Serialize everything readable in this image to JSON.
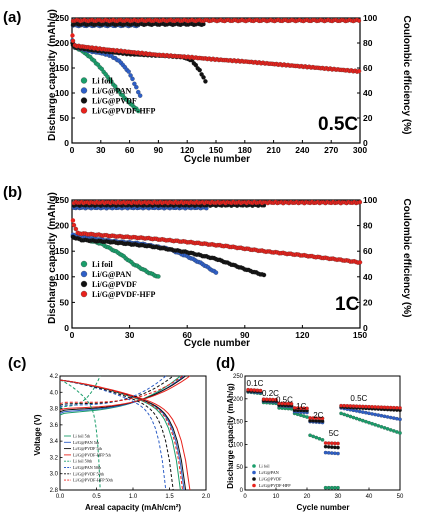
{
  "chart_data": [
    {
      "id": "a",
      "panel_label": "(a)",
      "type": "scatter",
      "xlabel": "Cycle number",
      "ylabel": "Discharge capacity (mAh/g)",
      "ylabel_right": "Coulombic efficiency (%)",
      "xlim": [
        0,
        300
      ],
      "ylim": [
        0,
        250
      ],
      "ylim_right": [
        0,
        100
      ],
      "xticks": [
        "0",
        "30",
        "60",
        "90",
        "120",
        "150",
        "180",
        "210",
        "240",
        "270",
        "300"
      ],
      "yticks": [
        "0",
        "50",
        "100",
        "150",
        "200",
        "250"
      ],
      "yticks_right": [
        "0",
        "20",
        "40",
        "60",
        "80",
        "100"
      ],
      "rate_label": "0.5C",
      "legend_position": "bottom-left",
      "series": [
        {
          "name": "Li foil",
          "color": "#1a9e6b",
          "end": 70,
          "cap": [
            [
              0,
              205
            ],
            [
              2,
              192
            ],
            [
              10,
              185
            ],
            [
              20,
              170
            ],
            [
              30,
              150
            ],
            [
              40,
              125
            ],
            [
              50,
              100
            ],
            [
              60,
              80
            ],
            [
              70,
              63
            ]
          ],
          "ce_end": 55,
          "ce": 96
        },
        {
          "name": "Li/G@PAN",
          "color": "#2e5fc7",
          "end": 72,
          "cap": [
            [
              0,
              205
            ],
            [
              2,
              192
            ],
            [
              10,
              188
            ],
            [
              20,
              183
            ],
            [
              30,
              180
            ],
            [
              40,
              175
            ],
            [
              50,
              163
            ],
            [
              60,
              140
            ],
            [
              66,
              115
            ],
            [
              72,
              90
            ]
          ],
          "ce_end": 70,
          "ce": 94
        },
        {
          "name": "Li/G@PVDF",
          "color": "#111111",
          "end": 140,
          "cap": [
            [
              0,
              200
            ],
            [
              2,
              192
            ],
            [
              20,
              186
            ],
            [
              40,
              182
            ],
            [
              60,
              178
            ],
            [
              80,
              176
            ],
            [
              100,
              174
            ],
            [
              115,
              172
            ],
            [
              125,
              165
            ],
            [
              133,
              145
            ],
            [
              140,
              120
            ]
          ],
          "ce_end": 138,
          "ce": 95
        },
        {
          "name": "Li/G@PVDF-HFP",
          "color": "#e8221c",
          "end": 300,
          "cap": [
            [
              0,
              215
            ],
            [
              2,
              195
            ],
            [
              30,
              188
            ],
            [
              60,
              182
            ],
            [
              90,
              176
            ],
            [
              120,
              172
            ],
            [
              150,
              167
            ],
            [
              180,
              163
            ],
            [
              210,
              158
            ],
            [
              240,
              153
            ],
            [
              270,
              148
            ],
            [
              300,
              143
            ]
          ],
          "ce_end": 300,
          "ce": 98
        }
      ]
    },
    {
      "id": "b",
      "panel_label": "(b)",
      "type": "scatter",
      "xlabel": "Cycle number",
      "ylabel": "Discharge capacity (mAh/g)",
      "ylabel_right": "Coulombic efficiency (%)",
      "xlim": [
        0,
        150
      ],
      "ylim": [
        0,
        250
      ],
      "ylim_right": [
        0,
        100
      ],
      "xticks": [
        "0",
        "30",
        "60",
        "90",
        "120",
        "150"
      ],
      "yticks": [
        "0",
        "50",
        "100",
        "150",
        "200",
        "250"
      ],
      "yticks_right": [
        "0",
        "20",
        "40",
        "60",
        "80",
        "100"
      ],
      "rate_label": "1C",
      "legend_position": "bottom-left",
      "series": [
        {
          "name": "Li foil",
          "color": "#1a9e6b",
          "end": 45,
          "cap": [
            [
              0,
              180
            ],
            [
              5,
              175
            ],
            [
              15,
              165
            ],
            [
              25,
              145
            ],
            [
              32,
              125
            ],
            [
              40,
              108
            ],
            [
              45,
              100
            ]
          ],
          "ce_end": 45,
          "ce": 96
        },
        {
          "name": "Li/G@PAN",
          "color": "#2e5fc7",
          "end": 75,
          "cap": [
            [
              0,
              182
            ],
            [
              5,
              178
            ],
            [
              20,
              170
            ],
            [
              35,
              165
            ],
            [
              50,
              155
            ],
            [
              60,
              140
            ],
            [
              68,
              125
            ],
            [
              75,
              108
            ]
          ],
          "ce_end": 70,
          "ce": 94
        },
        {
          "name": "Li/G@PVDF",
          "color": "#111111",
          "end": 100,
          "cap": [
            [
              0,
              178
            ],
            [
              5,
              172
            ],
            [
              20,
              168
            ],
            [
              40,
              160
            ],
            [
              60,
              148
            ],
            [
              75,
              135
            ],
            [
              90,
              115
            ],
            [
              100,
              103
            ]
          ],
          "ce_end": 100,
          "ce": 96
        },
        {
          "name": "Li/G@PVDF-HFP",
          "color": "#e8221c",
          "end": 150,
          "cap": [
            [
              0,
              210
            ],
            [
              3,
              185
            ],
            [
              20,
              180
            ],
            [
              40,
              175
            ],
            [
              60,
              168
            ],
            [
              80,
              160
            ],
            [
              100,
              150
            ],
            [
              120,
              142
            ],
            [
              140,
              133
            ],
            [
              150,
              128
            ]
          ],
          "ce_end": 150,
          "ce": 98
        }
      ]
    },
    {
      "id": "c",
      "panel_label": "(c)",
      "type": "line",
      "xlabel": "Areal capacity (mAh/cm²)",
      "ylabel": "Voltage (V)",
      "xlim": [
        0,
        2
      ],
      "ylim": [
        2.8,
        4.2
      ],
      "xticks": [
        "0.0",
        "0.5",
        "1.0",
        "1.5",
        "2.0"
      ],
      "yticks": [
        "2.8",
        "3.0",
        "3.2",
        "3.4",
        "3.6",
        "3.8",
        "4.0",
        "4.2"
      ],
      "legend_position": "bottom-left",
      "series": [
        {
          "name": "Li foil 5th",
          "color": "#1a9e6b",
          "dash": false,
          "cap": 1.65
        },
        {
          "name": "Li/G@PAN 5th",
          "color": "#2e5fc7",
          "dash": false,
          "cap": 1.7
        },
        {
          "name": "Li/G@PVDF 5th",
          "color": "#111111",
          "dash": false,
          "cap": 1.72
        },
        {
          "name": "Li/G@PVDF-HFP 5th",
          "color": "#e8221c",
          "dash": false,
          "cap": 1.78
        },
        {
          "name": "Li foil 50th",
          "color": "#1a9e6b",
          "dash": true,
          "cap": 0.55
        },
        {
          "name": "Li/G@PAN 50th",
          "color": "#2e5fc7",
          "dash": true,
          "cap": 1.45
        },
        {
          "name": "Li/G@PVDF 50th",
          "color": "#111111",
          "dash": true,
          "cap": 1.55
        },
        {
          "name": "Li/G@PVDF-HFP 50th",
          "color": "#e8221c",
          "dash": true,
          "cap": 1.68
        }
      ]
    },
    {
      "id": "d",
      "panel_label": "(d)",
      "type": "scatter",
      "xlabel": "Cycle number",
      "ylabel": "Discharge capacity (mAh/g)",
      "xlim": [
        0,
        50
      ],
      "ylim": [
        0,
        250
      ],
      "xticks": [
        "0",
        "10",
        "20",
        "30",
        "40",
        "50"
      ],
      "yticks": [
        "0",
        "50",
        "100",
        "150",
        "200",
        "250"
      ],
      "legend_position": "bottom-left",
      "rate_annotations": [
        {
          "text": "0.1C",
          "x": 0.5,
          "y": 228
        },
        {
          "text": "0.2C",
          "x": 5.5,
          "y": 206
        },
        {
          "text": "0.5C",
          "x": 10,
          "y": 192
        },
        {
          "text": "1C",
          "x": 16.5,
          "y": 178
        },
        {
          "text": "2C",
          "x": 22,
          "y": 158
        },
        {
          "text": "5C",
          "x": 27,
          "y": 118
        },
        {
          "text": "0.5C",
          "x": 34,
          "y": 195
        }
      ],
      "series": [
        {
          "name": "Li foil",
          "color": "#1a9e6b",
          "segs": [
            [
              215,
              212
            ],
            [
              192,
              190
            ],
            [
              180,
              178
            ],
            [
              168,
              160
            ],
            [
              120,
              110
            ],
            [
              5,
              5
            ],
            [
              168,
              125
            ]
          ]
        },
        {
          "name": "Li/G@PAN",
          "color": "#2e5fc7",
          "segs": [
            [
              216,
              214
            ],
            [
              195,
              193
            ],
            [
              185,
              183
            ],
            [
              172,
              170
            ],
            [
              150,
              148
            ],
            [
              82,
              80
            ],
            [
              180,
              155
            ]
          ]
        },
        {
          "name": "Li/G@PVDF",
          "color": "#111111",
          "segs": [
            [
              217,
              216
            ],
            [
              196,
              195
            ],
            [
              186,
              185
            ],
            [
              175,
              174
            ],
            [
              152,
              151
            ],
            [
              95,
              93
            ],
            [
              182,
              175
            ]
          ]
        },
        {
          "name": "Li/G@PVDF-HFP",
          "color": "#e8221c",
          "segs": [
            [
              220,
              218
            ],
            [
              199,
              198
            ],
            [
              190,
              189
            ],
            [
              180,
              179
            ],
            [
              158,
              157
            ],
            [
              103,
              102
            ],
            [
              185,
              180
            ]
          ]
        }
      ]
    }
  ]
}
